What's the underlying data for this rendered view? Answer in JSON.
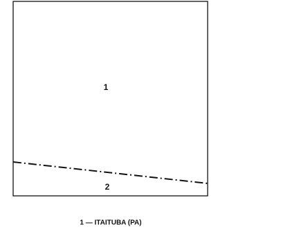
{
  "regions": [
    {
      "label": "1"
    },
    {
      "label": "2"
    }
  ],
  "legend": [
    "1 — ITAITUBA (PA)"
  ]
}
